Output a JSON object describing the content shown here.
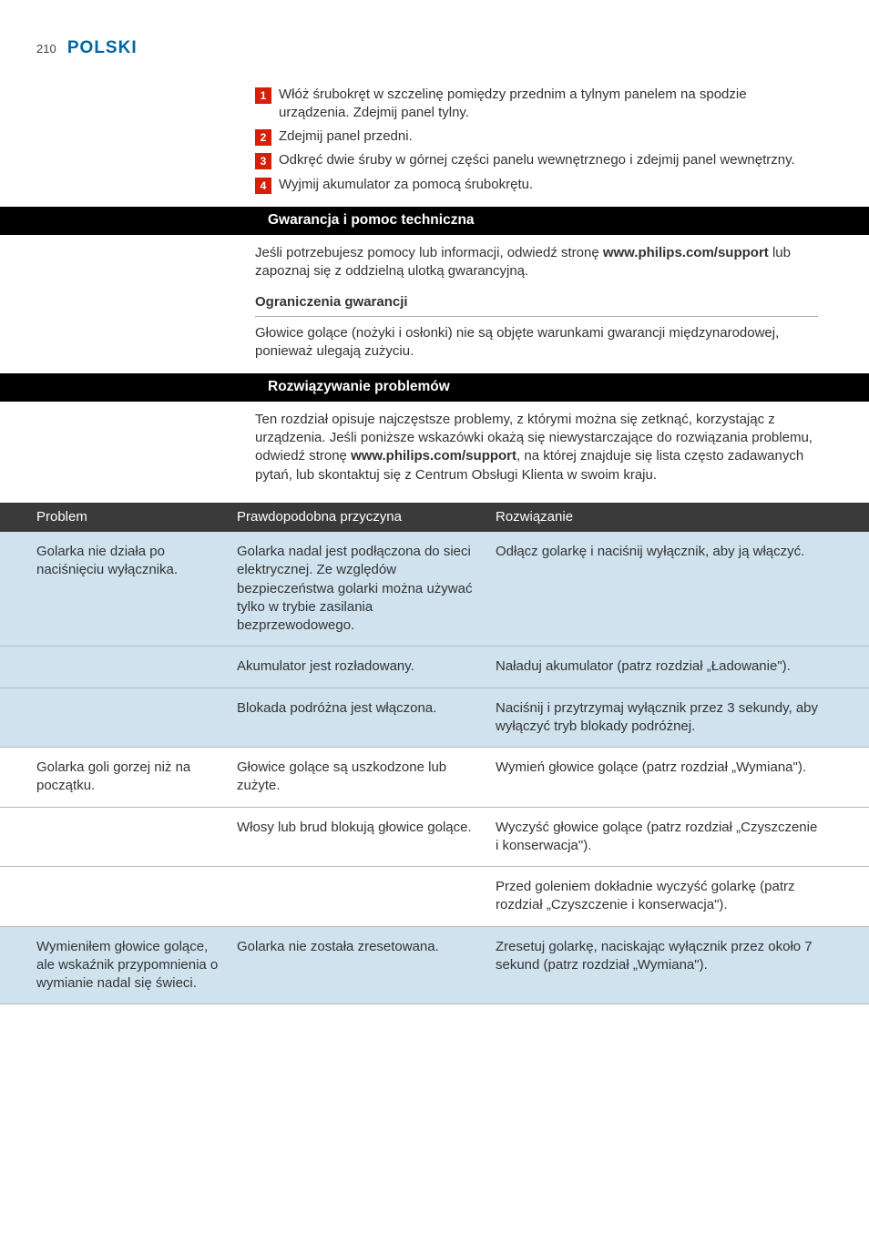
{
  "page_number": "210",
  "section_title": "POLSKI",
  "colors": {
    "title": "#0066a1",
    "step_badge": "#d81e05",
    "heading_band": "#000000",
    "table_header_bg": "#3a3a3a",
    "table_band_bg": "#cfe2ee",
    "divider": "#bbbbbb",
    "text": "#333333",
    "white": "#ffffff"
  },
  "steps": [
    "Włóż śrubokręt w szczelinę pomiędzy przednim a tylnym panelem na spodzie urządzenia. Zdejmij panel tylny.",
    "Zdejmij panel przedni.",
    "Odkręć dwie śruby w górnej części panelu wewnętrznego i zdejmij panel wewnętrzny.",
    "Wyjmij akumulator za pomocą śrubokrętu."
  ],
  "warranty": {
    "heading": "Gwarancja i pomoc techniczna",
    "para_pre": "Jeśli potrzebujesz pomocy lub informacji, odwiedź stronę ",
    "url": "www.philips.com/support",
    "para_post": " lub zapoznaj się z oddzielną ulotką gwarancyjną.",
    "limits_heading": "Ograniczenia gwarancji",
    "limits_para": "Głowice golące (nożyki i osłonki) nie są objęte warunkami gwarancji międzynarodowej, ponieważ ulegają zużyciu."
  },
  "troubleshooting": {
    "heading": "Rozwiązywanie problemów",
    "intro_pre": "Ten rozdział opisuje najczęstsze problemy, z którymi można się zetknąć, korzystając z urządzenia. Jeśli poniższe wskazówki okażą się niewystarczające do rozwiązania problemu, odwiedź stronę ",
    "intro_url": "www.philips.com/support",
    "intro_post": ", na której znajduje się lista często zadawanych pytań, lub skontaktuj się z Centrum Obsługi Klienta w swoim kraju."
  },
  "table": {
    "headers": {
      "problem": "Problem",
      "cause": "Prawdopodobna przyczyna",
      "solution": "Rozwiązanie"
    },
    "groups": [
      {
        "band": true,
        "rows": [
          {
            "problem": "Golarka nie działa po naciśnięciu wyłącznika.",
            "cause": "Golarka nadal jest podłączona do sieci elektrycznej. Ze względów bezpieczeństwa golarki można używać tylko w trybie zasilania bezprzewodowego.",
            "solution": "Odłącz golarkę i naciśnij wyłącznik, aby ją włączyć."
          },
          {
            "problem": "",
            "cause": "Akumulator jest rozładowany.",
            "solution": "Naładuj akumulator (patrz rozdział „Ładowanie\")."
          },
          {
            "problem": "",
            "cause": "Blokada podróżna jest włączona.",
            "solution": "Naciśnij i przytrzymaj wyłącznik przez 3 sekundy, aby wyłączyć tryb blokady podróżnej."
          }
        ]
      },
      {
        "band": false,
        "rows": [
          {
            "problem": "Golarka goli gorzej niż na początku.",
            "cause": "Głowice golące są uszkodzone lub zużyte.",
            "solution": "Wymień głowice golące (patrz rozdział „Wymiana\")."
          },
          {
            "problem": "",
            "cause": "Włosy lub brud blokują głowice golące.",
            "solution": "Wyczyść głowice golące (patrz rozdział „Czyszczenie i konserwacja\")."
          },
          {
            "problem": "",
            "cause": "",
            "solution": "Przed goleniem dokładnie wyczyść golarkę (patrz rozdział „Czyszczenie i konserwacja\")."
          }
        ]
      },
      {
        "band": true,
        "rows": [
          {
            "problem": "Wymieniłem głowice golące, ale wskaźnik przypomnienia o wymianie nadal się świeci.",
            "cause": "Golarka nie została zresetowana.",
            "solution": "Zresetuj golarkę, naciskając wyłącznik przez około 7 sekund (patrz rozdział „Wymiana\")."
          }
        ]
      }
    ]
  }
}
